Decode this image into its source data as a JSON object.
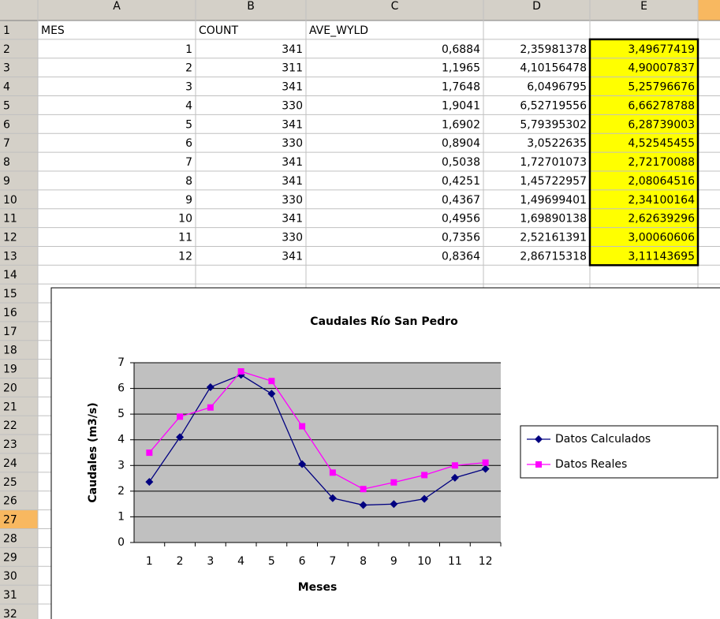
{
  "sheet": {
    "columns": [
      "A",
      "B",
      "C",
      "D",
      "E"
    ],
    "row_numbers": [
      1,
      2,
      3,
      4,
      5,
      6,
      7,
      8,
      9,
      10,
      11,
      12,
      13,
      14,
      15,
      16,
      17,
      18,
      19,
      20,
      21,
      22,
      23,
      24,
      25,
      26,
      27,
      28,
      29,
      30,
      31,
      32
    ],
    "header": [
      "MES",
      "COUNT",
      "AVE_WYLD"
    ],
    "cells": [
      [
        "1",
        "341",
        "0,6884",
        "2,35981378",
        "3,49677419"
      ],
      [
        "2",
        "311",
        "1,1965",
        "4,10156478",
        "4,90007837"
      ],
      [
        "3",
        "341",
        "1,7648",
        "6,0496795",
        "5,25796676"
      ],
      [
        "4",
        "330",
        "1,9041",
        "6,52719556",
        "6,66278788"
      ],
      [
        "5",
        "341",
        "1,6902",
        "5,79395302",
        "6,28739003"
      ],
      [
        "6",
        "330",
        "0,8904",
        "3,0522635",
        "4,52545455"
      ],
      [
        "7",
        "341",
        "0,5038",
        "1,72701073",
        "2,72170088"
      ],
      [
        "8",
        "341",
        "0,4251",
        "1,45722957",
        "2,08064516"
      ],
      [
        "9",
        "330",
        "0,4367",
        "1,49699401",
        "2,34100164"
      ],
      [
        "10",
        "341",
        "0,4956",
        "1,69890138",
        "2,62639296"
      ],
      [
        "11",
        "330",
        "0,7356",
        "2,52161391",
        "3,00060606"
      ],
      [
        "12",
        "341",
        "0,8364",
        "2,86715318",
        "3,11143695"
      ]
    ]
  },
  "chart_data": {
    "type": "line",
    "title": "Caudales Río San Pedro",
    "x_label": "Meses",
    "y_label": "Caudales (m3/s)",
    "categories": [
      "1",
      "2",
      "3",
      "4",
      "5",
      "6",
      "7",
      "8",
      "9",
      "10",
      "11",
      "12"
    ],
    "series": [
      {
        "name": "Datos Calculados",
        "color": "#000080",
        "marker": "diamond",
        "values": [
          2.35981378,
          4.10156478,
          6.0496795,
          6.52719556,
          5.79395302,
          3.0522635,
          1.72701073,
          1.45722957,
          1.49699401,
          1.69890138,
          2.52161391,
          2.86715318
        ]
      },
      {
        "name": "Datos Reales",
        "color": "#ff00ff",
        "marker": "square",
        "values": [
          3.49677419,
          4.90007837,
          5.25796676,
          6.66278788,
          6.28739003,
          4.52545455,
          2.72170088,
          2.08064516,
          2.34100164,
          2.62639296,
          3.00060606,
          3.11143695
        ]
      }
    ],
    "ylim": [
      0,
      7
    ],
    "yticks": [
      0,
      1,
      2,
      3,
      4,
      5,
      6,
      7
    ],
    "grid": true,
    "legend": "right",
    "plot_background": "#c0c0c0"
  }
}
